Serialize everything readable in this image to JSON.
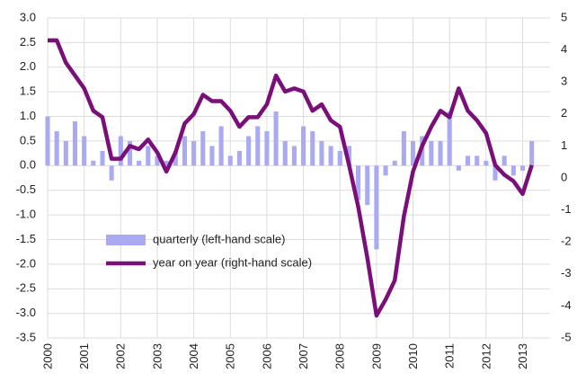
{
  "chart_data": {
    "type": "bar_line",
    "x": [
      2000,
      2000.25,
      2000.5,
      2000.75,
      2001,
      2001.25,
      2001.5,
      2001.75,
      2002,
      2002.25,
      2002.5,
      2002.75,
      2003,
      2003.25,
      2003.5,
      2003.75,
      2004,
      2004.25,
      2004.5,
      2004.75,
      2005,
      2005.25,
      2005.5,
      2005.75,
      2006,
      2006.25,
      2006.5,
      2006.75,
      2007,
      2007.25,
      2007.5,
      2007.75,
      2008,
      2008.25,
      2008.5,
      2008.75,
      2009,
      2009.25,
      2009.5,
      2009.75,
      2010,
      2010.25,
      2010.5,
      2010.75,
      2011,
      2011.25,
      2011.5,
      2011.75,
      2012,
      2012.25,
      2012.5,
      2012.75,
      2013,
      2013.25
    ],
    "series": [
      {
        "name": "quarterly (left-hand scale)",
        "color": "#aaaaf2",
        "kind": "bar",
        "values": [
          1.0,
          0.7,
          0.5,
          0.9,
          0.6,
          0.1,
          0.3,
          -0.3,
          0.6,
          0.5,
          0.1,
          0.4,
          0.2,
          0.1,
          0.3,
          0.6,
          0.5,
          0.7,
          0.4,
          0.8,
          0.2,
          0.3,
          0.6,
          0.8,
          0.7,
          1.1,
          0.5,
          0.4,
          0.8,
          0.7,
          0.5,
          0.4,
          0.3,
          0.4,
          -0.7,
          -0.8,
          -1.7,
          -0.2,
          0.1,
          0.7,
          0.5,
          0.6,
          0.5,
          0.5,
          1.1,
          -0.1,
          0.2,
          0.2,
          0.1,
          -0.3,
          0.2,
          -0.2,
          -0.1,
          0.5
        ]
      },
      {
        "name": "year on year (right-hand scale)",
        "color": "#7a0f7a",
        "kind": "line",
        "axis": "y2",
        "values": [
          4.3,
          4.3,
          3.6,
          3.2,
          2.8,
          2.1,
          1.9,
          0.6,
          0.6,
          1.0,
          0.9,
          1.2,
          0.8,
          0.2,
          0.8,
          1.7,
          2.0,
          2.6,
          2.4,
          2.4,
          2.1,
          1.6,
          1.9,
          1.9,
          2.3,
          3.2,
          2.7,
          2.8,
          2.7,
          2.1,
          2.3,
          1.8,
          1.6,
          0.4,
          -0.9,
          -2.5,
          -4.3,
          -3.8,
          -3.2,
          -1.2,
          0.2,
          1.0,
          1.6,
          2.1,
          1.9,
          2.8,
          2.1,
          1.8,
          1.4,
          0.4,
          0.1,
          -0.1,
          -0.5,
          0.4
        ]
      }
    ],
    "xlim": [
      2000,
      2013.75
    ],
    "xticks": [
      2000,
      2001,
      2002,
      2003,
      2004,
      2005,
      2006,
      2007,
      2008,
      2009,
      2010,
      2011,
      2012,
      2013
    ],
    "ylim": [
      -3.5,
      3.0
    ],
    "yticks": [
      {
        "value": 3,
        "label": "3.0"
      },
      2.5,
      {
        "value": 2,
        "label": "2.0"
      },
      1.5,
      {
        "value": 1,
        "label": "1.0"
      },
      0.5,
      {
        "value": 0,
        "label": "0.0"
      },
      -0.5,
      {
        "value": -1,
        "label": "-1.0"
      },
      -1.5,
      {
        "value": -2,
        "label": "-2.0"
      },
      -2.5,
      {
        "value": -3,
        "label": "-3.0"
      },
      -3.5
    ],
    "y2lim": [
      -5,
      5
    ],
    "y2ticks": [
      5,
      4,
      3,
      2,
      1,
      0,
      -1,
      -2,
      -3,
      -4,
      -5
    ],
    "grid": true
  }
}
